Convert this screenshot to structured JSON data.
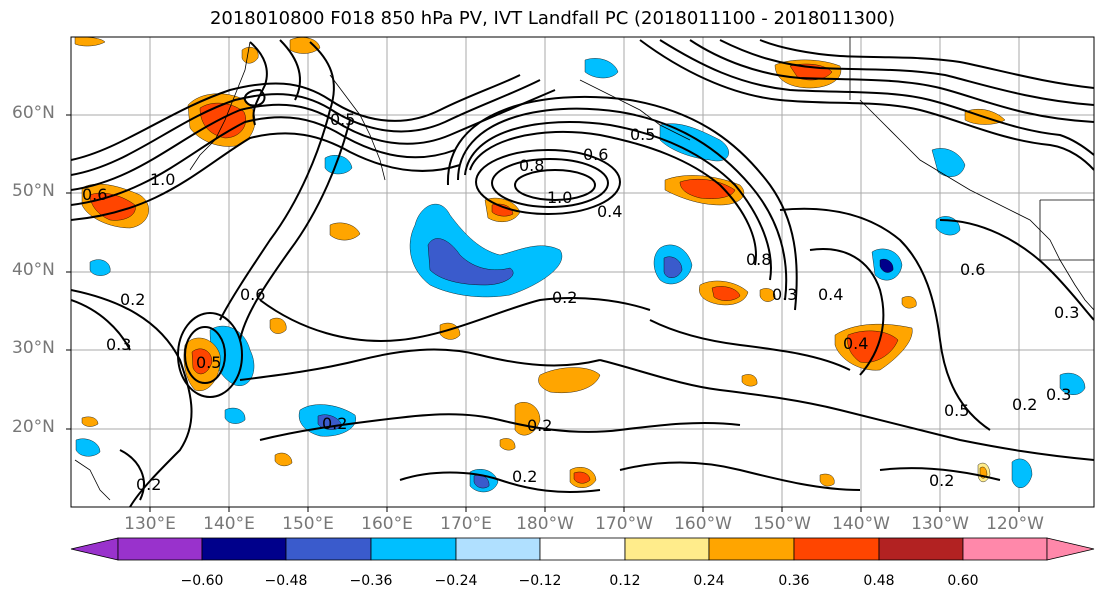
{
  "title": "2018010800 F018 850 hPa PV, IVT Landfall PC (2018011100 - 2018011300)",
  "latitude_labels": [
    "60°N",
    "50°N",
    "40°N",
    "30°N",
    "20°N"
  ],
  "longitude_labels": [
    "130°E",
    "140°E",
    "150°E",
    "160°E",
    "170°E",
    "180°W",
    "170°W",
    "160°W",
    "150°W",
    "140°W",
    "130°W",
    "120°W"
  ],
  "contour_labels": [
    "0.6",
    "0.8",
    "1.0",
    "0.4",
    "0.5",
    "0.2",
    "0.3",
    "0.4",
    "0.2",
    "0.2",
    "0.2",
    "0.4",
    "0.5",
    "0.2",
    "0.3",
    "0.2",
    "0.3",
    "0.8",
    "0.2",
    "0.5",
    "0.6",
    "0.3",
    "1.0",
    "0.6",
    "0.6",
    "0.5",
    "0.2"
  ],
  "colorbar": {
    "ticks": [
      "−0.60",
      "−0.48",
      "−0.36",
      "−0.24",
      "−0.12",
      "0.12",
      "0.24",
      "0.36",
      "0.48",
      "0.60"
    ],
    "colors": [
      "#9932cc",
      "#00008b",
      "#3a5bcc",
      "#00bfff",
      "#b0e0ff",
      "#ffffff",
      "#ffec8b",
      "#ffa500",
      "#ff4500",
      "#b22222",
      "#ff88aa"
    ]
  }
}
